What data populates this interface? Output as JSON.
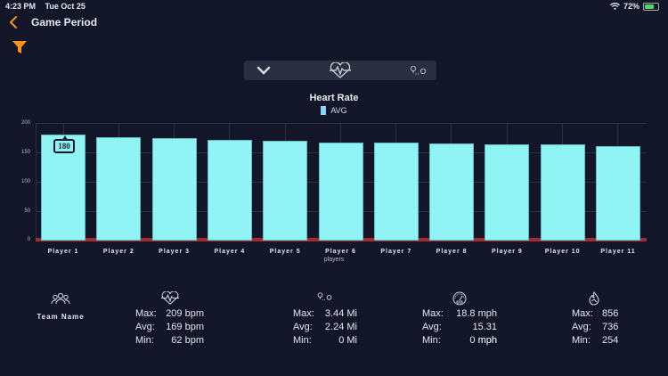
{
  "status_bar": {
    "time": "4:23 PM",
    "date": "Tue Oct 25",
    "battery": "72%"
  },
  "header": {
    "title": "Game Period"
  },
  "segment": {
    "items": [
      "chevron-down",
      "heart-rate",
      "distance"
    ]
  },
  "chart_data": {
    "type": "bar",
    "title": "Heart Rate",
    "legend": [
      "AVG"
    ],
    "xlabel": "players",
    "ylabel": "",
    "ylim": [
      0,
      200
    ],
    "yticks": [
      "200",
      "150",
      "100",
      "50",
      "0"
    ],
    "categories": [
      "Player 1",
      "Player 2",
      "Player 3",
      "Player 4",
      "Player 5",
      "Player 6",
      "Player 7",
      "Player 8",
      "Player 9",
      "Player 10",
      "Player 11"
    ],
    "series": [
      {
        "name": "AVG",
        "color": "#8ff4f3",
        "values": [
          180,
          176,
          174,
          171,
          169,
          167,
          166,
          165,
          164,
          163,
          160
        ]
      }
    ],
    "annotation": {
      "category": "Player 1",
      "label": "180"
    },
    "grid": true
  },
  "stats": {
    "team": {
      "name": "Team Name"
    },
    "heart_rate": {
      "max_label": "Max:",
      "max": "209 bpm",
      "avg_label": "Avg:",
      "avg": "169 bpm",
      "min_label": "Min:",
      "min": "62 bpm"
    },
    "distance": {
      "max_label": "Max:",
      "max": "3.44 Mi",
      "avg_label": "Avg:",
      "avg": "2.24 Mi",
      "min_label": "Min:",
      "min": "0 Mi"
    },
    "speed": {
      "max_label": "Max:",
      "max": "18.8 mph",
      "avg_label": "Avg:",
      "avg": "15.31 mph",
      "min_label": "Min:",
      "min": "0 mph"
    },
    "calories": {
      "max_label": "Max:",
      "max": "856",
      "avg_label": "Avg:",
      "avg": "736",
      "min_label": "Min:",
      "min": "254"
    }
  },
  "colors": {
    "accent": "#f7941d",
    "bar": "#8ff4f3",
    "baseline": "#a82a2e",
    "background": "#121628"
  }
}
